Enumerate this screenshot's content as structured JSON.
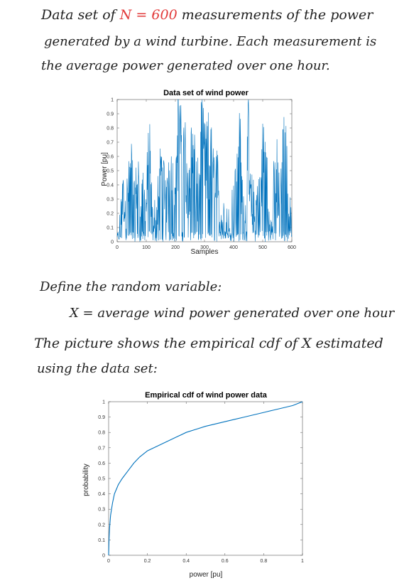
{
  "text": {
    "line1_pre": "Data set of",
    "line1_n": "N = 600",
    "line1_post": "measurements of the power",
    "line2": "generated by a wind turbine. Each measurement is",
    "line3": "the average power generated over one hour.",
    "line4": "Define the random variable:",
    "line5": "X = average wind power generated over one hour",
    "line6": "The picture shows the empirical cdf of X estimated",
    "line7": "using the data set:"
  },
  "chart_data": [
    {
      "type": "line",
      "title": "Data set of wind power",
      "xlabel": "Samples",
      "ylabel": "Power [pu]",
      "xlim": [
        0,
        600
      ],
      "ylim": [
        0,
        1
      ],
      "xticks": [
        0,
        100,
        200,
        300,
        400,
        500,
        600
      ],
      "yticks": [
        0,
        0.1,
        0.2,
        0.3,
        0.4,
        0.5,
        0.6,
        0.7,
        0.8,
        0.9,
        1
      ],
      "series_color": "#0072BD",
      "grid": false,
      "n_points": 600,
      "x": [
        0,
        10,
        20,
        30,
        40,
        50,
        60,
        70,
        80,
        90,
        100,
        110,
        120,
        130,
        140,
        150,
        160,
        170,
        180,
        190,
        200,
        210,
        220,
        230,
        240,
        250,
        260,
        270,
        280,
        290,
        300,
        310,
        320,
        330,
        340,
        350,
        360,
        370,
        380,
        390,
        400,
        410,
        420,
        430,
        440,
        450,
        460,
        470,
        480,
        490,
        500,
        510,
        520,
        530,
        540,
        550,
        560,
        570,
        580,
        590,
        600
      ],
      "y": [
        0.05,
        0.02,
        0.35,
        0.2,
        0.45,
        0.6,
        0.3,
        0.55,
        0.2,
        0.4,
        0.3,
        0.75,
        0.2,
        0.15,
        0.25,
        0.6,
        0.5,
        0.3,
        0.55,
        0.45,
        0.25,
        0.98,
        0.7,
        0.9,
        0.35,
        0.5,
        0.85,
        0.4,
        0.3,
        0.92,
        0.6,
        0.55,
        0.75,
        0.4,
        0.5,
        0.25,
        0.15,
        0.2,
        0.05,
        0.1,
        0.2,
        0.35,
        0.85,
        0.3,
        0.2,
        0.95,
        0.25,
        0.15,
        0.35,
        0.2,
        0.75,
        0.4,
        0.2,
        0.1,
        0.3,
        0.35,
        0.15,
        0.95,
        0.6,
        0.2,
        0.1
      ],
      "max_y": [
        0.15,
        0.2,
        0.55,
        0.48,
        0.58,
        0.62,
        0.48,
        0.7,
        0.4,
        0.62,
        0.55,
        0.82,
        0.35,
        0.3,
        0.55,
        0.62,
        0.6,
        0.45,
        0.68,
        0.62,
        0.5,
        0.98,
        0.95,
        0.98,
        0.6,
        0.75,
        0.97,
        0.65,
        0.55,
        0.95,
        0.92,
        0.9,
        0.95,
        0.7,
        0.78,
        0.48,
        0.3,
        0.4,
        0.28,
        0.35,
        0.5,
        0.7,
        0.95,
        0.55,
        0.45,
        0.97,
        0.5,
        0.48,
        0.62,
        0.45,
        0.95,
        0.78,
        0.55,
        0.35,
        0.62,
        0.75,
        0.35,
        0.97,
        0.85,
        0.45,
        0.3
      ]
    },
    {
      "type": "line",
      "title": "Empirical cdf of wind power data",
      "xlabel": "power [pu]",
      "ylabel": "probability",
      "xlim": [
        0,
        1
      ],
      "ylim": [
        0,
        1
      ],
      "xticks": [
        0,
        0.2,
        0.4,
        0.6,
        0.8,
        1
      ],
      "xtick_labels": [
        "0",
        "0.2",
        "0.4",
        "0.6",
        "0.8",
        "1"
      ],
      "yticks": [
        0,
        0.1,
        0.2,
        0.3,
        0.4,
        0.5,
        0.6,
        0.7,
        0.8,
        0.9,
        1
      ],
      "series_color": "#0072BD",
      "grid": false,
      "x": [
        0,
        0.002,
        0.005,
        0.01,
        0.02,
        0.03,
        0.05,
        0.07,
        0.1,
        0.13,
        0.16,
        0.2,
        0.25,
        0.3,
        0.35,
        0.4,
        0.45,
        0.5,
        0.55,
        0.6,
        0.65,
        0.7,
        0.75,
        0.8,
        0.85,
        0.9,
        0.95,
        0.98,
        1.0
      ],
      "y": [
        0,
        0.1,
        0.18,
        0.26,
        0.34,
        0.4,
        0.46,
        0.5,
        0.55,
        0.6,
        0.64,
        0.68,
        0.71,
        0.74,
        0.77,
        0.8,
        0.82,
        0.84,
        0.855,
        0.87,
        0.885,
        0.9,
        0.915,
        0.93,
        0.945,
        0.96,
        0.975,
        0.99,
        1.0
      ]
    }
  ]
}
